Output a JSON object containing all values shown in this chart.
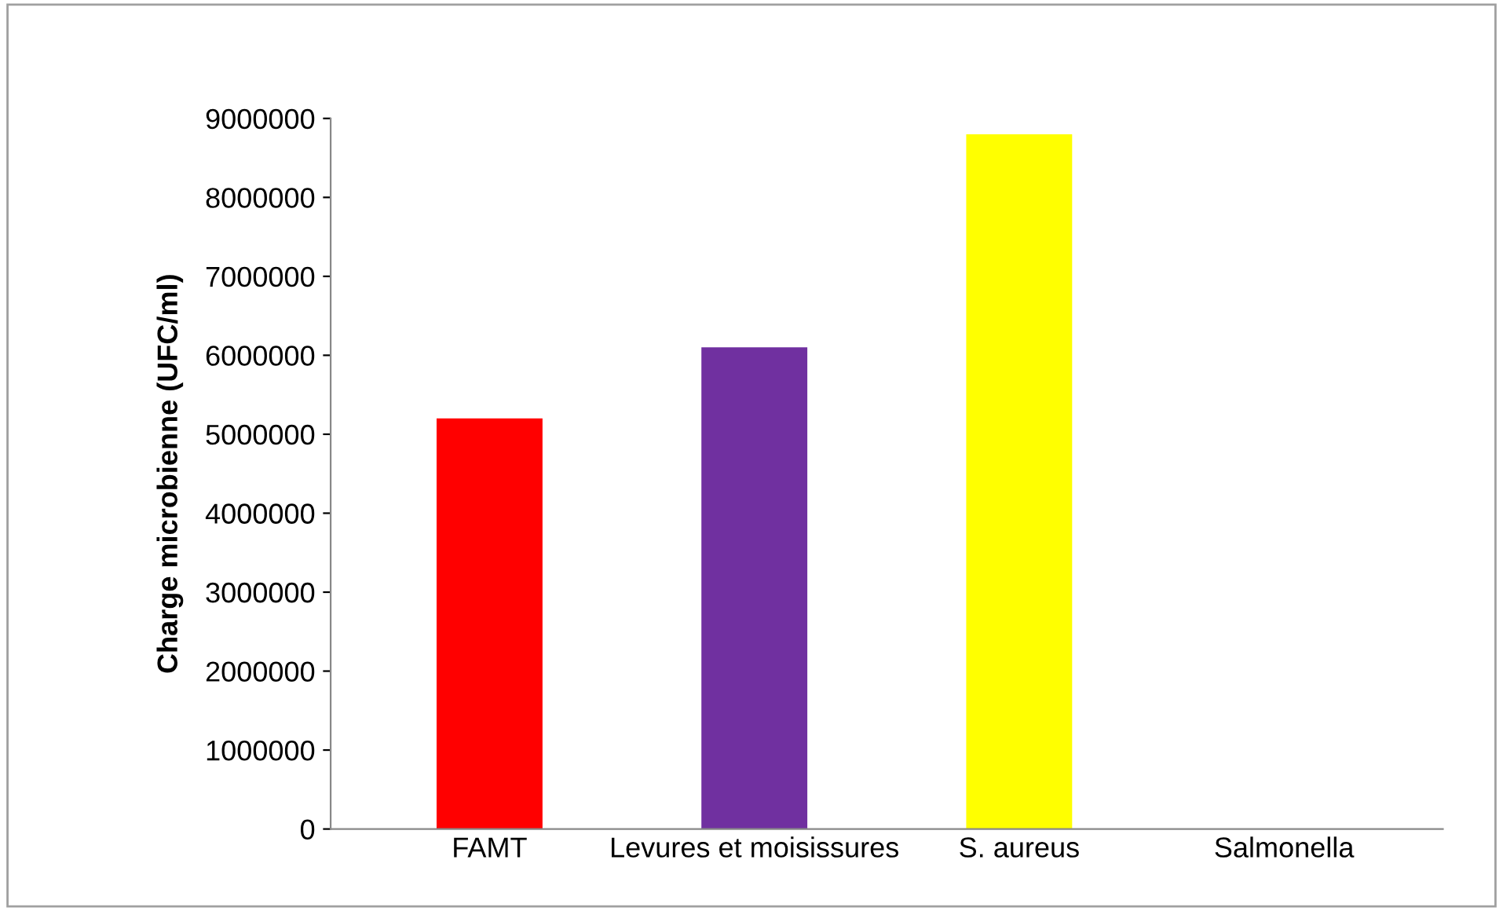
{
  "chart_data": {
    "type": "bar",
    "ylabel": "Charge microbienne (UFC/ml)",
    "categories": [
      "FAMT",
      "Levures et moisissures",
      "S. aureus",
      "Salmonella"
    ],
    "values": [
      5200000,
      6100000,
      8800000,
      0
    ],
    "colors": [
      "#ff0000",
      "#7030a0",
      "#ffff00",
      "#2f5597"
    ],
    "ylim": [
      0,
      9000000
    ],
    "yticks": [
      0,
      1000000,
      2000000,
      3000000,
      4000000,
      5000000,
      6000000,
      7000000,
      8000000,
      9000000
    ]
  }
}
